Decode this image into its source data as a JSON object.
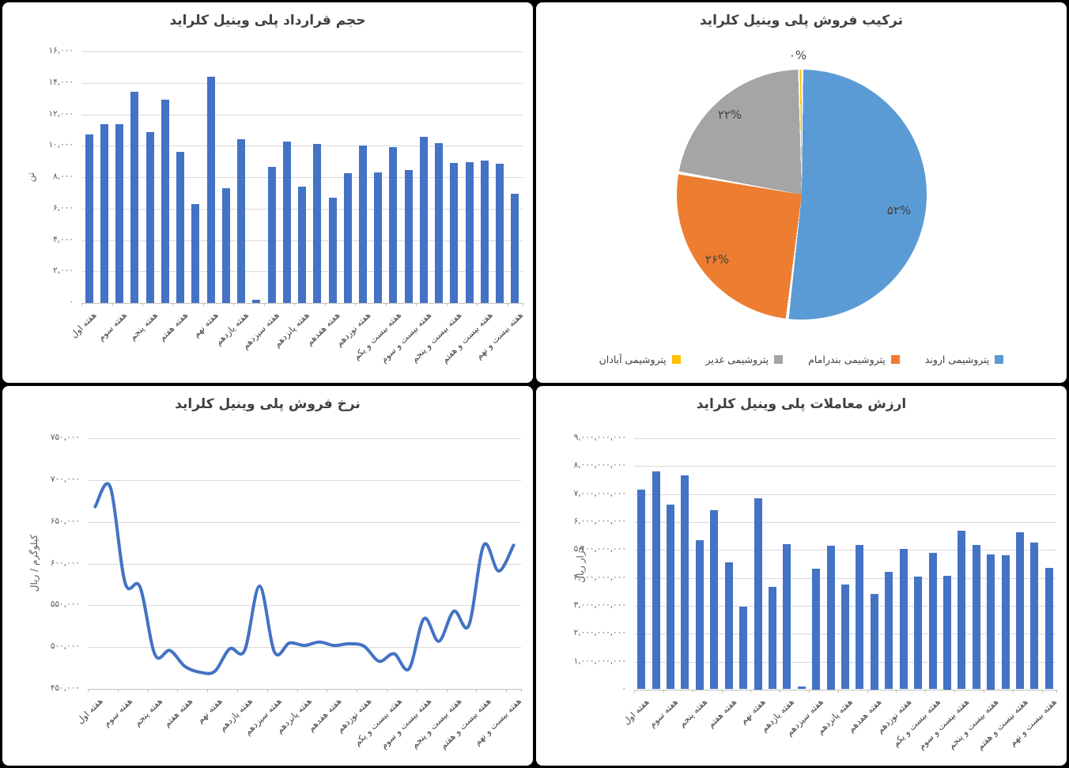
{
  "page": {
    "background": "#000000",
    "panel_background": "#ffffff",
    "bar_color": "#4472C4",
    "line_color": "#4472C4",
    "gridline_color": "#D9D9D9",
    "axis_color": "#BFBFBF"
  },
  "week_categories": [
    "هفته اول",
    "هفته سوم",
    "هفته پنجم",
    "هفته هفتم",
    "هفته نهم",
    "هفته یازدهم",
    "هفته سیزدهم",
    "هفته پانزدهم",
    "هفته هفدهم",
    "هفته نوزدهم",
    "هفته بیست و یکم",
    "هفته بیست و سوم",
    "هفته بیست و پنجم",
    "هفته بیست و هفتم",
    "هفته بیست و نهم"
  ],
  "chart_data": [
    {
      "id": "sales-composition",
      "type": "pie",
      "title": "ترکیب فروش پلی وینیل کلراید",
      "legend_position": "bottom",
      "slices": [
        {
          "label": "پتروشیمی اروند",
          "pct": 52,
          "pct_label": "۵۲%",
          "color": "#5B9BD5"
        },
        {
          "label": "پتروشیمی بندرامام",
          "pct": 26,
          "pct_label": "۲۶%",
          "color": "#ED7D31"
        },
        {
          "label": "پتروشیمی غدیر",
          "pct": 22,
          "pct_label": "۲۲%",
          "color": "#A5A5A5"
        },
        {
          "label": "پتروشیمی آبادان",
          "pct": 0,
          "pct_label": "۰%",
          "color": "#FFC000"
        }
      ]
    },
    {
      "id": "contract-volume",
      "type": "bar",
      "title": "حجم قرارداد پلی وینیل کلراید",
      "ylabel": "تن",
      "ylim": [
        0,
        16000
      ],
      "yticks": [
        "۰",
        "۲,۰۰۰",
        "۴,۰۰۰",
        "۶,۰۰۰",
        "۸,۰۰۰",
        "۱۰,۰۰۰",
        "۱۲,۰۰۰",
        "۱۴,۰۰۰",
        "۱۶,۰۰۰"
      ],
      "grid": true,
      "x_categories_note": "29 weekly bars, axis labels show odd weeks only (week_categories)",
      "values": [
        10700,
        11350,
        11350,
        13450,
        10850,
        12950,
        9600,
        6300,
        14400,
        7300,
        10400,
        200,
        8650,
        10250,
        7400,
        10100,
        6700,
        8250,
        10000,
        8300,
        9900,
        8450,
        10550,
        10150,
        8900,
        8950,
        9050,
        8850,
        6950
      ]
    },
    {
      "id": "trade-value",
      "type": "bar",
      "title": "ارزش معاملات پلی وینیل کلراید",
      "ylabel": "هزار ریال",
      "ylim": [
        0,
        9000000000
      ],
      "yticks": [
        "۰",
        "۱,۰۰۰,۰۰۰,۰۰۰",
        "۲,۰۰۰,۰۰۰,۰۰۰",
        "۳,۰۰۰,۰۰۰,۰۰۰",
        "۴,۰۰۰,۰۰۰,۰۰۰",
        "۵,۰۰۰,۰۰۰,۰۰۰",
        "۶,۰۰۰,۰۰۰,۰۰۰",
        "۷,۰۰۰,۰۰۰,۰۰۰",
        "۸,۰۰۰,۰۰۰,۰۰۰",
        "۹,۰۰۰,۰۰۰,۰۰۰"
      ],
      "grid": true,
      "x_categories_note": "29 weekly bars, axis labels show odd weeks only (week_categories)",
      "values": [
        7150000000,
        7800000000,
        6600000000,
        7650000000,
        5350000000,
        6400000000,
        4550000000,
        2970000000,
        6850000000,
        3660000000,
        5200000000,
        110000000,
        4330000000,
        5150000000,
        3740000000,
        5170000000,
        3410000000,
        4200000000,
        5030000000,
        4040000000,
        4890000000,
        4060000000,
        5670000000,
        5160000000,
        4840000000,
        4790000000,
        5620000000,
        5260000000,
        4350000000
      ]
    },
    {
      "id": "sales-rate",
      "type": "line",
      "title": "نرخ فروش پلی وینیل کلراید",
      "ylabel": "کیلوگرم / ریال",
      "ylim": [
        450000,
        750000
      ],
      "yticks": [
        "۴۵۰,۰۰۰",
        "۵۰۰,۰۰۰",
        "۵۵۰,۰۰۰",
        "۶۰۰,۰۰۰",
        "۶۵۰,۰۰۰",
        "۷۰۰,۰۰۰",
        "۷۵۰,۰۰۰"
      ],
      "grid": true,
      "x_categories_note": "29 weekly points, axis labels show odd weeks only (week_categories)",
      "values": [
        668000,
        692000,
        577000,
        572000,
        491000,
        496000,
        477000,
        470000,
        471000,
        498000,
        496000,
        573000,
        494000,
        505000,
        502000,
        506000,
        502000,
        504000,
        501000,
        483000,
        492000,
        474000,
        534000,
        507000,
        543000,
        526000,
        622000,
        591000,
        622000
      ]
    }
  ]
}
